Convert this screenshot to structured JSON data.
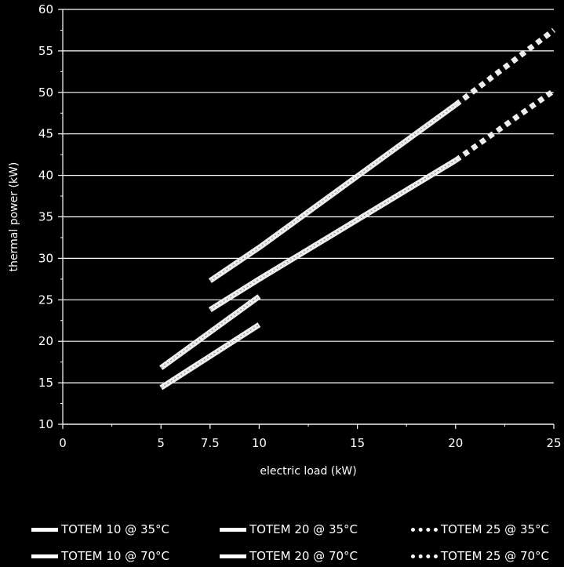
{
  "chart_data": {
    "type": "line",
    "title": "",
    "xlabel": "electric load (kW)",
    "ylabel": "thermal power (kW)",
    "xlim": [
      0,
      25
    ],
    "ylim": [
      10,
      60
    ],
    "x_ticks": [
      0,
      5,
      7.5,
      10,
      15,
      20,
      25
    ],
    "x_tick_labels": [
      "0",
      "5",
      "7.5",
      "10",
      "15",
      "20",
      "25"
    ],
    "y_ticks": [
      10,
      15,
      20,
      25,
      30,
      35,
      40,
      45,
      50,
      55,
      60
    ],
    "y_tick_labels": [
      "10",
      "15",
      "20",
      "25",
      "30",
      "35",
      "40",
      "45",
      "50",
      "55",
      "60"
    ],
    "grid": "horizontal",
    "legend_position": "bottom",
    "series": [
      {
        "name": "TOTEM 10 @ 35°C",
        "style": "solid",
        "x": [
          5,
          10
        ],
        "y": [
          16.8,
          25.4
        ]
      },
      {
        "name": "TOTEM 10 @ 70°C",
        "style": "solid",
        "x": [
          5,
          10
        ],
        "y": [
          14.4,
          22.0
        ]
      },
      {
        "name": "TOTEM 20 @ 35°C",
        "style": "solid",
        "x": [
          7.5,
          10,
          20
        ],
        "y": [
          27.3,
          31.3,
          48.5
        ]
      },
      {
        "name": "TOTEM 20 @ 70°C",
        "style": "solid",
        "x": [
          7.5,
          10,
          20
        ],
        "y": [
          23.8,
          27.5,
          41.8
        ]
      },
      {
        "name": "TOTEM 25 @ 35°C",
        "style": "dotted",
        "x": [
          20,
          25
        ],
        "y": [
          48.5,
          57.5
        ]
      },
      {
        "name": "TOTEM 25 @ 70°C",
        "style": "dotted",
        "x": [
          20,
          25
        ],
        "y": [
          41.8,
          50.2
        ]
      }
    ],
    "colors": {
      "background": "#000000",
      "foreground": "#ffffff",
      "line": "#eeeeee"
    }
  }
}
